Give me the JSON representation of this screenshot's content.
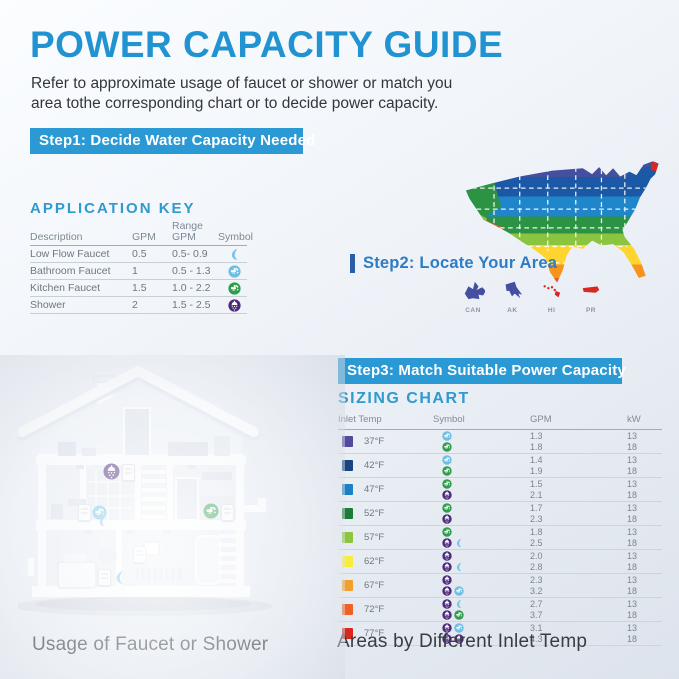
{
  "header": {
    "title": "POWER CAPACITY GUIDE",
    "subtitle_line1": "Refer to approximate usage of faucet or shower or match you",
    "subtitle_line2": "area tothe corresponding chart or to decide power capacity."
  },
  "steps": {
    "step1": "Step1: Decide Water Capacity Needed",
    "step2": "Step2: Locate Your Area",
    "step3": "Step3: Match Suitable Power Capacity"
  },
  "application_key": {
    "title": "APPLICATION KEY",
    "headers": {
      "description": "Description",
      "gpm": "GPM",
      "range_line1": "Range",
      "range_line2": "GPM",
      "symbol": "Symbol"
    },
    "rows": [
      {
        "description": "Low Flow Faucet",
        "gpm": "0.5",
        "range": "0.5- 0.9",
        "symbols": [
          "low-flow-faucet"
        ]
      },
      {
        "description": "Bathroom  Faucet",
        "gpm": "1",
        "range": "0.5 - 1.3",
        "symbols": [
          "bathroom-faucet"
        ]
      },
      {
        "description": "Kitchen  Faucet",
        "gpm": "1.5",
        "range": "1.0 - 2.2",
        "symbols": [
          "kitchen-faucet"
        ]
      },
      {
        "description": "Shower",
        "gpm": "2",
        "range": "1.5 - 2.5",
        "symbols": [
          "shower"
        ]
      }
    ]
  },
  "map_regions": [
    {
      "label": "CAN"
    },
    {
      "label": "AK"
    },
    {
      "label": "HI"
    },
    {
      "label": "PR"
    }
  ],
  "sizing_chart": {
    "title": "SIZING CHART",
    "headers": {
      "inlet": "Inlet Temp",
      "symbol": "Symbol",
      "gpm": "GPM",
      "kw": "kW"
    },
    "rows": [
      {
        "temp": "37°F",
        "color": "#514a9d",
        "lines": [
          {
            "symbols": [
              "bathroom-faucet"
            ],
            "gpm": "1.3",
            "kw": "13"
          },
          {
            "symbols": [
              "kitchen-faucet"
            ],
            "gpm": "1.8",
            "kw": "18"
          }
        ]
      },
      {
        "temp": "42°F",
        "color": "#16457f",
        "lines": [
          {
            "symbols": [
              "bathroom-faucet"
            ],
            "gpm": "1.4",
            "kw": "13"
          },
          {
            "symbols": [
              "kitchen-faucet"
            ],
            "gpm": "1.9",
            "kw": "18"
          }
        ]
      },
      {
        "temp": "47°F",
        "color": "#1c80c4",
        "lines": [
          {
            "symbols": [
              "kitchen-faucet"
            ],
            "gpm": "1.5",
            "kw": "13"
          },
          {
            "symbols": [
              "shower"
            ],
            "gpm": "2.1",
            "kw": "18"
          }
        ]
      },
      {
        "temp": "52°F",
        "color": "#1e7c39",
        "lines": [
          {
            "symbols": [
              "kitchen-faucet"
            ],
            "gpm": "1.7",
            "kw": "13"
          },
          {
            "symbols": [
              "shower"
            ],
            "gpm": "2.3",
            "kw": "18"
          }
        ]
      },
      {
        "temp": "57°F",
        "color": "#8cc63f",
        "lines": [
          {
            "symbols": [
              "kitchen-faucet"
            ],
            "gpm": "1.8",
            "kw": "13"
          },
          {
            "symbols": [
              "shower",
              "low-flow-faucet"
            ],
            "gpm": "2.5",
            "kw": "18"
          }
        ]
      },
      {
        "temp": "62°F",
        "color": "#f8ec3c",
        "lines": [
          {
            "symbols": [
              "shower"
            ],
            "gpm": "2.0",
            "kw": "13"
          },
          {
            "symbols": [
              "shower",
              "low-flow-faucet"
            ],
            "gpm": "2.8",
            "kw": "18"
          }
        ]
      },
      {
        "temp": "67°F",
        "color": "#f2a02b",
        "lines": [
          {
            "symbols": [
              "shower"
            ],
            "gpm": "2.3",
            "kw": "13"
          },
          {
            "symbols": [
              "shower",
              "bathroom-faucet"
            ],
            "gpm": "3.2",
            "kw": "18"
          }
        ]
      },
      {
        "temp": "72°F",
        "color": "#ee6325",
        "lines": [
          {
            "symbols": [
              "shower",
              "low-flow-faucet"
            ],
            "gpm": "2.7",
            "kw": "13"
          },
          {
            "symbols": [
              "shower",
              "kitchen-faucet"
            ],
            "gpm": "3.7",
            "kw": "18"
          }
        ]
      },
      {
        "temp": "77°F",
        "color": "#d9291f",
        "lines": [
          {
            "symbols": [
              "shower",
              "bathroom-faucet"
            ],
            "gpm": "3.1",
            "kw": "13"
          },
          {
            "symbols": [
              "shower",
              "shower"
            ],
            "gpm": "4.3",
            "kw": "18"
          }
        ]
      }
    ]
  },
  "captions": {
    "house": "Usage of Faucet or Shower",
    "map": "Areas by Different Inlet Temp"
  },
  "symbol_colors": {
    "low-flow-faucet": "#7ac4e8",
    "bathroom-faucet": "#6fbfe4",
    "kitchen-faucet": "#2f9e4c",
    "shower": "#4b2a7b"
  },
  "accent_colors": {
    "title": "#2193d1",
    "banner": "#2a99d4",
    "section": "#2e9ace",
    "step2_text": "#2e7cc3",
    "step2_bar": "#2a5ea8"
  }
}
